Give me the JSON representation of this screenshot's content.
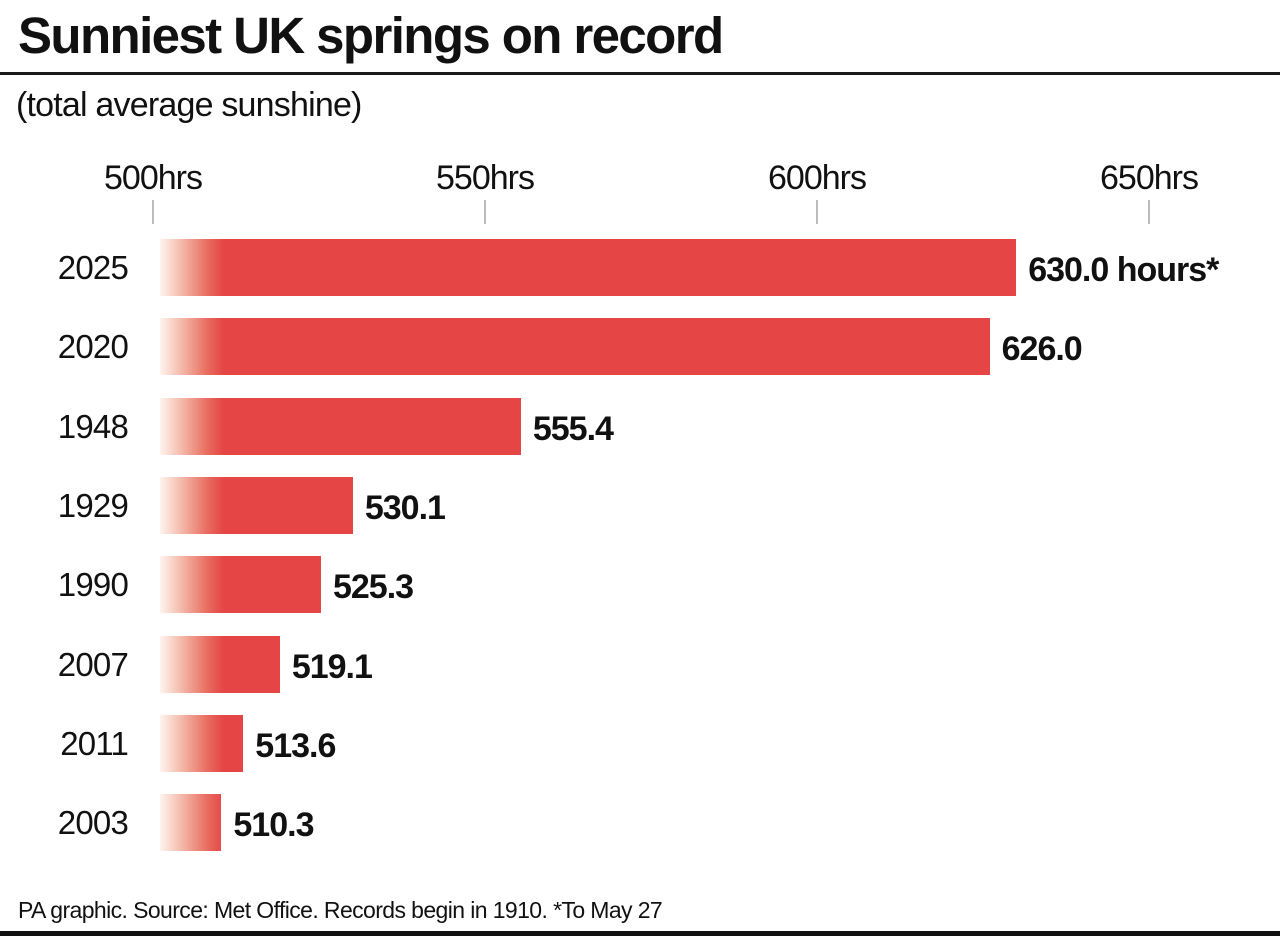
{
  "header": {
    "title": "Sunniest UK springs on record",
    "subtitle": "(total average sunshine)"
  },
  "axis": {
    "ticks": [
      {
        "label": "500hrs",
        "value": 500
      },
      {
        "label": "550hrs",
        "value": 550
      },
      {
        "label": "600hrs",
        "value": 600
      },
      {
        "label": "650hrs",
        "value": 650
      }
    ]
  },
  "rows": [
    {
      "year": "2025",
      "value": 630.0,
      "label": "630.0 hours*"
    },
    {
      "year": "2020",
      "value": 626.0,
      "label": "626.0"
    },
    {
      "year": "1948",
      "value": 555.4,
      "label": "555.4"
    },
    {
      "year": "1929",
      "value": 530.1,
      "label": "530.1"
    },
    {
      "year": "1990",
      "value": 525.3,
      "label": "525.3"
    },
    {
      "year": "2007",
      "value": 519.1,
      "label": "519.1"
    },
    {
      "year": "2011",
      "value": 513.6,
      "label": "513.6"
    },
    {
      "year": "2003",
      "value": 510.3,
      "label": "510.3"
    }
  ],
  "footer": {
    "text": "PA graphic. Source: Met Office. Records begin in 1910. *To May 27"
  },
  "colors": {
    "bar": "#e54545",
    "text": "#111111",
    "tick": "#bdbdbd"
  },
  "chart_data": {
    "type": "bar",
    "orientation": "horizontal",
    "title": "Sunniest UK springs on record",
    "subtitle": "(total average sunshine)",
    "categories": [
      "2025",
      "2020",
      "1948",
      "1929",
      "1990",
      "2007",
      "2011",
      "2003"
    ],
    "values": [
      630.0,
      626.0,
      555.4,
      530.1,
      525.3,
      519.1,
      513.6,
      510.3
    ],
    "data_labels": [
      "630.0 hours*",
      "626.0",
      "555.4",
      "530.1",
      "525.3",
      "519.1",
      "513.6",
      "510.3"
    ],
    "xlabel": "",
    "ylabel": "",
    "unit": "hours",
    "xlim": [
      500,
      650
    ],
    "x_ticks": [
      "500hrs",
      "550hrs",
      "600hrs",
      "650hrs"
    ],
    "grid": false,
    "legend": null,
    "annotations": [
      "*To May 27"
    ],
    "source": "PA graphic. Source: Met Office. Records begin in 1910. *To May 27"
  }
}
